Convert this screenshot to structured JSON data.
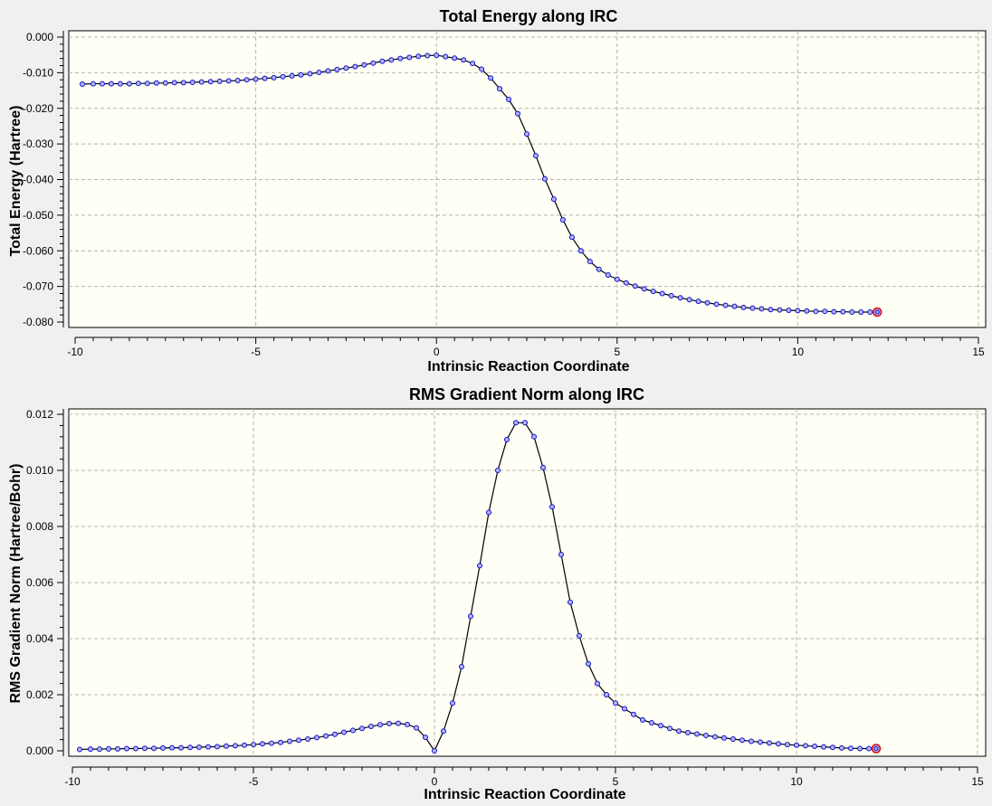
{
  "chart_data": [
    {
      "type": "line",
      "title": "Total Energy along IRC",
      "xlabel": "Intrinsic Reaction Coordinate",
      "ylabel": "Total Energy (Hartree)",
      "xlim": [
        -10,
        15
      ],
      "ylim": [
        -0.08,
        0.0
      ],
      "xticks": [
        -10,
        -5,
        0,
        5,
        10,
        15
      ],
      "xtick_labels": [
        "-10",
        "-5",
        "0",
        "5",
        "10",
        "15"
      ],
      "yticks": [
        0.0,
        -0.01,
        -0.02,
        -0.03,
        -0.04,
        -0.05,
        -0.06,
        -0.07,
        -0.08
      ],
      "ytick_labels": [
        "0.000",
        "-0.010",
        "-0.020",
        "-0.030",
        "-0.040",
        "-0.050",
        "-0.060",
        "-0.070",
        "-0.080"
      ],
      "grid": true,
      "x": [
        -9.8,
        -9.5,
        -9.25,
        -9.0,
        -8.75,
        -8.5,
        -8.25,
        -8.0,
        -7.75,
        -7.5,
        -7.25,
        -7.0,
        -6.75,
        -6.5,
        -6.25,
        -6.0,
        -5.75,
        -5.5,
        -5.25,
        -5.0,
        -4.75,
        -4.5,
        -4.25,
        -4.0,
        -3.75,
        -3.5,
        -3.25,
        -3.0,
        -2.75,
        -2.5,
        -2.25,
        -2.0,
        -1.75,
        -1.5,
        -1.25,
        -1.0,
        -0.75,
        -0.5,
        -0.25,
        0.0,
        0.25,
        0.5,
        0.75,
        1.0,
        1.25,
        1.5,
        1.75,
        2.0,
        2.25,
        2.5,
        2.75,
        3.0,
        3.25,
        3.5,
        3.75,
        4.0,
        4.25,
        4.5,
        4.75,
        5.0,
        5.25,
        5.5,
        5.75,
        6.0,
        6.25,
        6.5,
        6.75,
        7.0,
        7.25,
        7.5,
        7.75,
        8.0,
        8.25,
        8.5,
        8.75,
        9.0,
        9.25,
        9.5,
        9.75,
        10.0,
        10.25,
        10.5,
        10.75,
        11.0,
        11.25,
        11.5,
        11.75,
        12.0,
        12.2
      ],
      "y": [
        -0.0132,
        -0.0131,
        -0.0131,
        -0.0131,
        -0.0131,
        -0.0131,
        -0.013,
        -0.013,
        -0.0129,
        -0.0129,
        -0.0128,
        -0.0128,
        -0.0127,
        -0.0126,
        -0.0125,
        -0.0124,
        -0.0123,
        -0.0122,
        -0.012,
        -0.0118,
        -0.0116,
        -0.0114,
        -0.0111,
        -0.0109,
        -0.0106,
        -0.0103,
        -0.0099,
        -0.0095,
        -0.0091,
        -0.0087,
        -0.0083,
        -0.0078,
        -0.0073,
        -0.0068,
        -0.0064,
        -0.006,
        -0.0057,
        -0.0054,
        -0.0052,
        -0.0051,
        -0.0055,
        -0.0059,
        -0.0064,
        -0.0074,
        -0.009,
        -0.0115,
        -0.0145,
        -0.0175,
        -0.0215,
        -0.0272,
        -0.0333,
        -0.0398,
        -0.0455,
        -0.0513,
        -0.0562,
        -0.06,
        -0.063,
        -0.0652,
        -0.0668,
        -0.068,
        -0.069,
        -0.0699,
        -0.0707,
        -0.0714,
        -0.072,
        -0.0726,
        -0.0732,
        -0.0737,
        -0.0742,
        -0.0746,
        -0.075,
        -0.0753,
        -0.0756,
        -0.0759,
        -0.0761,
        -0.0763,
        -0.0765,
        -0.0766,
        -0.0767,
        -0.0768,
        -0.0769,
        -0.077,
        -0.077,
        -0.0771,
        -0.0771,
        -0.0772,
        -0.0772,
        -0.0772,
        -0.0772
      ]
    },
    {
      "type": "line",
      "title": "RMS Gradient Norm along IRC",
      "xlabel": "Intrinsic Reaction Coordinate",
      "ylabel": "RMS Gradient Norm (Hartree/Bohr)",
      "xlim": [
        -10,
        15
      ],
      "ylim": [
        0.0,
        0.012
      ],
      "xticks": [
        -10,
        -5,
        0,
        5,
        10,
        15
      ],
      "xtick_labels": [
        "-10",
        "-5",
        "0",
        "5",
        "10",
        "15"
      ],
      "yticks": [
        0.0,
        0.002,
        0.004,
        0.006,
        0.008,
        0.01,
        0.012
      ],
      "ytick_labels": [
        "0.000",
        "0.002",
        "0.004",
        "0.006",
        "0.008",
        "0.010",
        "0.012"
      ],
      "grid": true,
      "x": [
        -9.8,
        -9.5,
        -9.25,
        -9.0,
        -8.75,
        -8.5,
        -8.25,
        -8.0,
        -7.75,
        -7.5,
        -7.25,
        -7.0,
        -6.75,
        -6.5,
        -6.25,
        -6.0,
        -5.75,
        -5.5,
        -5.25,
        -5.0,
        -4.75,
        -4.5,
        -4.25,
        -4.0,
        -3.75,
        -3.5,
        -3.25,
        -3.0,
        -2.75,
        -2.5,
        -2.25,
        -2.0,
        -1.75,
        -1.5,
        -1.25,
        -1.0,
        -0.75,
        -0.5,
        -0.25,
        0.0,
        0.25,
        0.5,
        0.75,
        1.0,
        1.25,
        1.5,
        1.75,
        2.0,
        2.25,
        2.5,
        2.75,
        3.0,
        3.25,
        3.5,
        3.75,
        4.0,
        4.25,
        4.5,
        4.75,
        5.0,
        5.25,
        5.5,
        5.75,
        6.0,
        6.25,
        6.5,
        6.75,
        7.0,
        7.25,
        7.5,
        7.75,
        8.0,
        8.25,
        8.5,
        8.75,
        9.0,
        9.25,
        9.5,
        9.75,
        10.0,
        10.25,
        10.5,
        10.75,
        11.0,
        11.25,
        11.5,
        11.75,
        12.0,
        12.2
      ],
      "y": [
        5e-05,
        6e-05,
        6e-05,
        7e-05,
        7e-05,
        8e-05,
        8e-05,
        9e-05,
        9e-05,
        0.0001,
        0.00011,
        0.00011,
        0.00012,
        0.00013,
        0.00014,
        0.00015,
        0.00017,
        0.00018,
        0.0002,
        0.00022,
        0.00025,
        0.00027,
        0.0003,
        0.00034,
        0.00038,
        0.00042,
        0.00047,
        0.00053,
        0.00059,
        0.00066,
        0.00073,
        0.0008,
        0.00087,
        0.00093,
        0.00097,
        0.00098,
        0.00094,
        0.00082,
        0.00048,
        0.0,
        0.0007,
        0.0017,
        0.003,
        0.0048,
        0.0066,
        0.0085,
        0.01,
        0.0111,
        0.0117,
        0.0117,
        0.0112,
        0.0101,
        0.0087,
        0.007,
        0.0053,
        0.0041,
        0.0031,
        0.0024,
        0.002,
        0.0017,
        0.0015,
        0.0013,
        0.0011,
        0.001,
        0.0009,
        0.0008,
        0.0007,
        0.00065,
        0.0006,
        0.00055,
        0.0005,
        0.00046,
        0.00042,
        0.00038,
        0.00034,
        0.00031,
        0.00028,
        0.00025,
        0.00022,
        0.0002,
        0.00018,
        0.00016,
        0.00014,
        0.00012,
        0.0001,
        9e-05,
        8e-05,
        8e-05,
        8e-05
      ]
    }
  ],
  "colors": {
    "background": "#f0f0f0",
    "plot_background": "#fffff5",
    "grid": "#b4b4b4",
    "curve": "#000000",
    "marker_fill": "#b0b4ff",
    "marker_stroke": "#1010c0",
    "final_marker_stroke": "#e00000"
  }
}
